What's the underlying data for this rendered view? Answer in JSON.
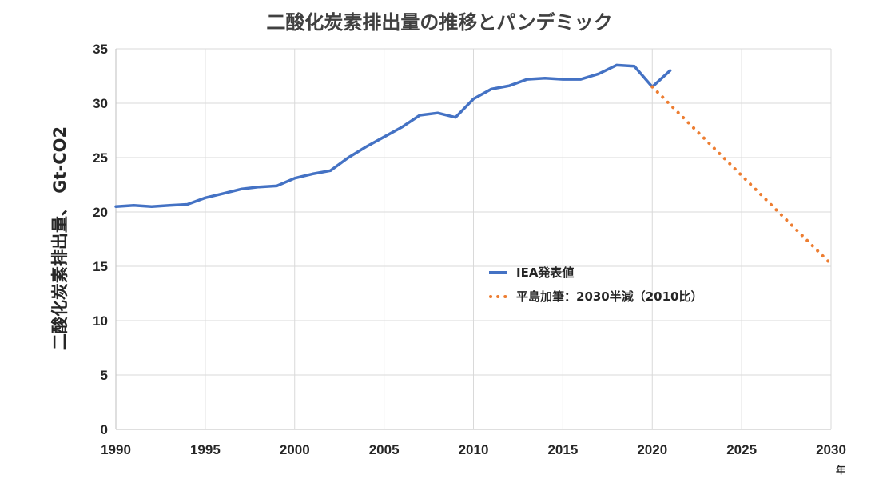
{
  "chart_data": {
    "type": "line",
    "title": "二酸化炭素排出量の推移とパンデミック",
    "ylabel": "二酸化炭素排出量、 Gt-CO2",
    "xunit": "年",
    "xlim": [
      1990,
      2030
    ],
    "ylim": [
      0,
      35
    ],
    "xticks": [
      1990,
      1995,
      2000,
      2005,
      2010,
      2015,
      2020,
      2025,
      2030
    ],
    "yticks": [
      0,
      5,
      10,
      15,
      20,
      25,
      30,
      35
    ],
    "grid": true,
    "legend_position": "center-right",
    "series": [
      {
        "name": "IEA発表値",
        "style": "solid",
        "color": "#4472c4",
        "x": [
          1990,
          1991,
          1992,
          1993,
          1994,
          1995,
          1996,
          1997,
          1998,
          1999,
          2000,
          2001,
          2002,
          2003,
          2004,
          2005,
          2006,
          2007,
          2008,
          2009,
          2010,
          2011,
          2012,
          2013,
          2014,
          2015,
          2016,
          2017,
          2018,
          2019,
          2020,
          2021
        ],
        "y": [
          20.5,
          20.6,
          20.5,
          20.6,
          20.7,
          21.3,
          21.7,
          22.1,
          22.3,
          22.4,
          23.1,
          23.5,
          23.8,
          25.0,
          26.0,
          26.9,
          27.8,
          28.9,
          29.1,
          28.7,
          30.4,
          31.3,
          31.6,
          32.2,
          32.3,
          32.2,
          32.2,
          32.7,
          33.5,
          33.4,
          31.5,
          33.0
        ]
      },
      {
        "name": "平島加筆：2030半減（2010比）",
        "style": "dotted",
        "color": "#ed7d31",
        "x": [
          2020,
          2030
        ],
        "y": [
          31.5,
          15.2
        ]
      }
    ]
  }
}
